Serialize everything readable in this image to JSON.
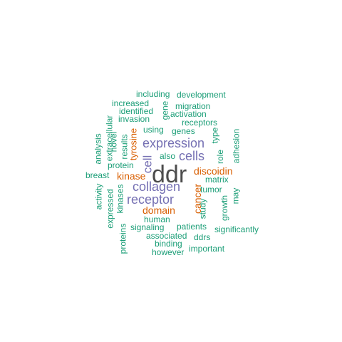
{
  "colors": {
    "dark": "#4d4d4d",
    "purple": "#7570b3",
    "orange": "#d95f02",
    "green": "#1b9e77"
  },
  "words": [
    {
      "text": "ddr",
      "color": "dark"
    },
    {
      "text": "expression",
      "color": "purple"
    },
    {
      "text": "collagen",
      "color": "purple"
    },
    {
      "text": "receptor",
      "color": "purple"
    },
    {
      "text": "cells",
      "color": "purple"
    },
    {
      "text": "cell",
      "color": "purple"
    },
    {
      "text": "discoidin",
      "color": "orange"
    },
    {
      "text": "kinase",
      "color": "orange"
    },
    {
      "text": "domain",
      "color": "orange"
    },
    {
      "text": "cancer",
      "color": "orange"
    },
    {
      "text": "tyrosine",
      "color": "orange"
    },
    {
      "text": "including",
      "color": "green"
    },
    {
      "text": "development",
      "color": "green"
    },
    {
      "text": "increased",
      "color": "green"
    },
    {
      "text": "migration",
      "color": "green"
    },
    {
      "text": "identified",
      "color": "green"
    },
    {
      "text": "gene",
      "color": "green"
    },
    {
      "text": "activation",
      "color": "green"
    },
    {
      "text": "invasion",
      "color": "green"
    },
    {
      "text": "receptors",
      "color": "green"
    },
    {
      "text": "extracellular",
      "color": "green"
    },
    {
      "text": "using",
      "color": "green"
    },
    {
      "text": "genes",
      "color": "green"
    },
    {
      "text": "analysis",
      "color": "green"
    },
    {
      "text": "novel",
      "color": "green"
    },
    {
      "text": "results",
      "color": "green"
    },
    {
      "text": "type",
      "color": "green"
    },
    {
      "text": "adhesion",
      "color": "green"
    },
    {
      "text": "also",
      "color": "green"
    },
    {
      "text": "role",
      "color": "green"
    },
    {
      "text": "protein",
      "color": "green"
    },
    {
      "text": "breast",
      "color": "green"
    },
    {
      "text": "matrix",
      "color": "green"
    },
    {
      "text": "tumor",
      "color": "green"
    },
    {
      "text": "activity",
      "color": "green"
    },
    {
      "text": "expressed",
      "color": "green"
    },
    {
      "text": "kinases",
      "color": "green"
    },
    {
      "text": "may",
      "color": "green"
    },
    {
      "text": "study",
      "color": "green"
    },
    {
      "text": "growth",
      "color": "green"
    },
    {
      "text": "human",
      "color": "green"
    },
    {
      "text": "proteins",
      "color": "green"
    },
    {
      "text": "signaling",
      "color": "green"
    },
    {
      "text": "patients",
      "color": "green"
    },
    {
      "text": "significantly",
      "color": "green"
    },
    {
      "text": "associated",
      "color": "green"
    },
    {
      "text": "ddrs",
      "color": "green"
    },
    {
      "text": "binding",
      "color": "green"
    },
    {
      "text": "important",
      "color": "green"
    },
    {
      "text": "however",
      "color": "green"
    }
  ]
}
